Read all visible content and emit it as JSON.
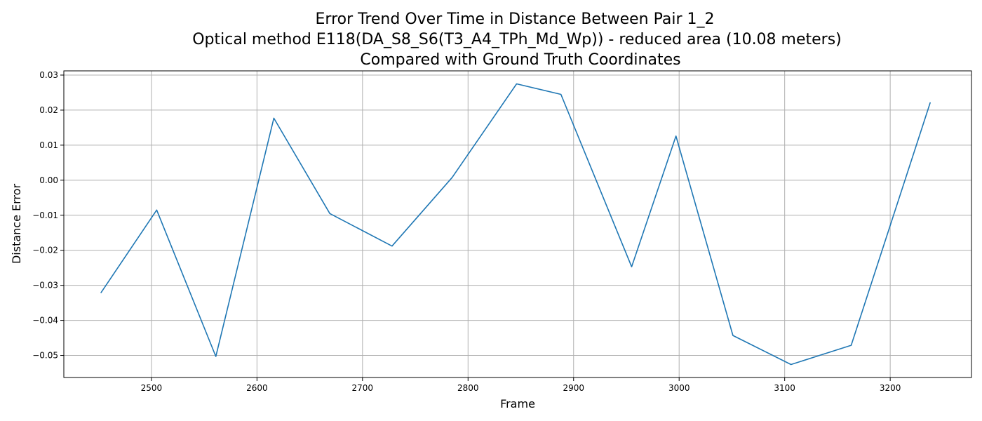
{
  "chart_data": {
    "type": "line",
    "title_lines": [
      "Error Trend Over Time in Distance Between Pair 1_2",
      "Optical method E118(DA_S8_S6(T3_A4_TPh_Md_Wp)) - reduced area (10.08 meters)",
      "Compared with Ground Truth Coordinates"
    ],
    "xlabel": "Frame",
    "ylabel": "Distance Error",
    "xlim": [
      2417,
      3277
    ],
    "ylim": [
      -0.0563,
      0.0312
    ],
    "xticks": [
      2500,
      2600,
      2700,
      2800,
      2900,
      3000,
      3100,
      3200
    ],
    "xtick_labels": [
      "2500",
      "2600",
      "2700",
      "2800",
      "2900",
      "3000",
      "3100",
      "3200"
    ],
    "yticks": [
      0.03,
      0.02,
      0.01,
      0.0,
      -0.01,
      -0.02,
      -0.03,
      -0.04,
      -0.05
    ],
    "ytick_labels": [
      "0.03",
      "0.02",
      "0.01",
      "0.00",
      "−0.01",
      "−0.02",
      "−0.03",
      "−0.04",
      "−0.05"
    ],
    "grid": true,
    "series": [
      {
        "color": "#1f77b4",
        "x": [
          2452,
          2505,
          2561,
          2616,
          2669,
          2728,
          2785,
          2846,
          2888,
          2955,
          2997,
          3051,
          3106,
          3163,
          3238
        ],
        "y": [
          -0.0322,
          -0.0085,
          -0.0503,
          0.0177,
          -0.0095,
          -0.0188,
          0.0008,
          0.0275,
          0.0245,
          -0.0247,
          0.0126,
          -0.0443,
          -0.0526,
          -0.0471,
          0.0222
        ]
      }
    ]
  }
}
